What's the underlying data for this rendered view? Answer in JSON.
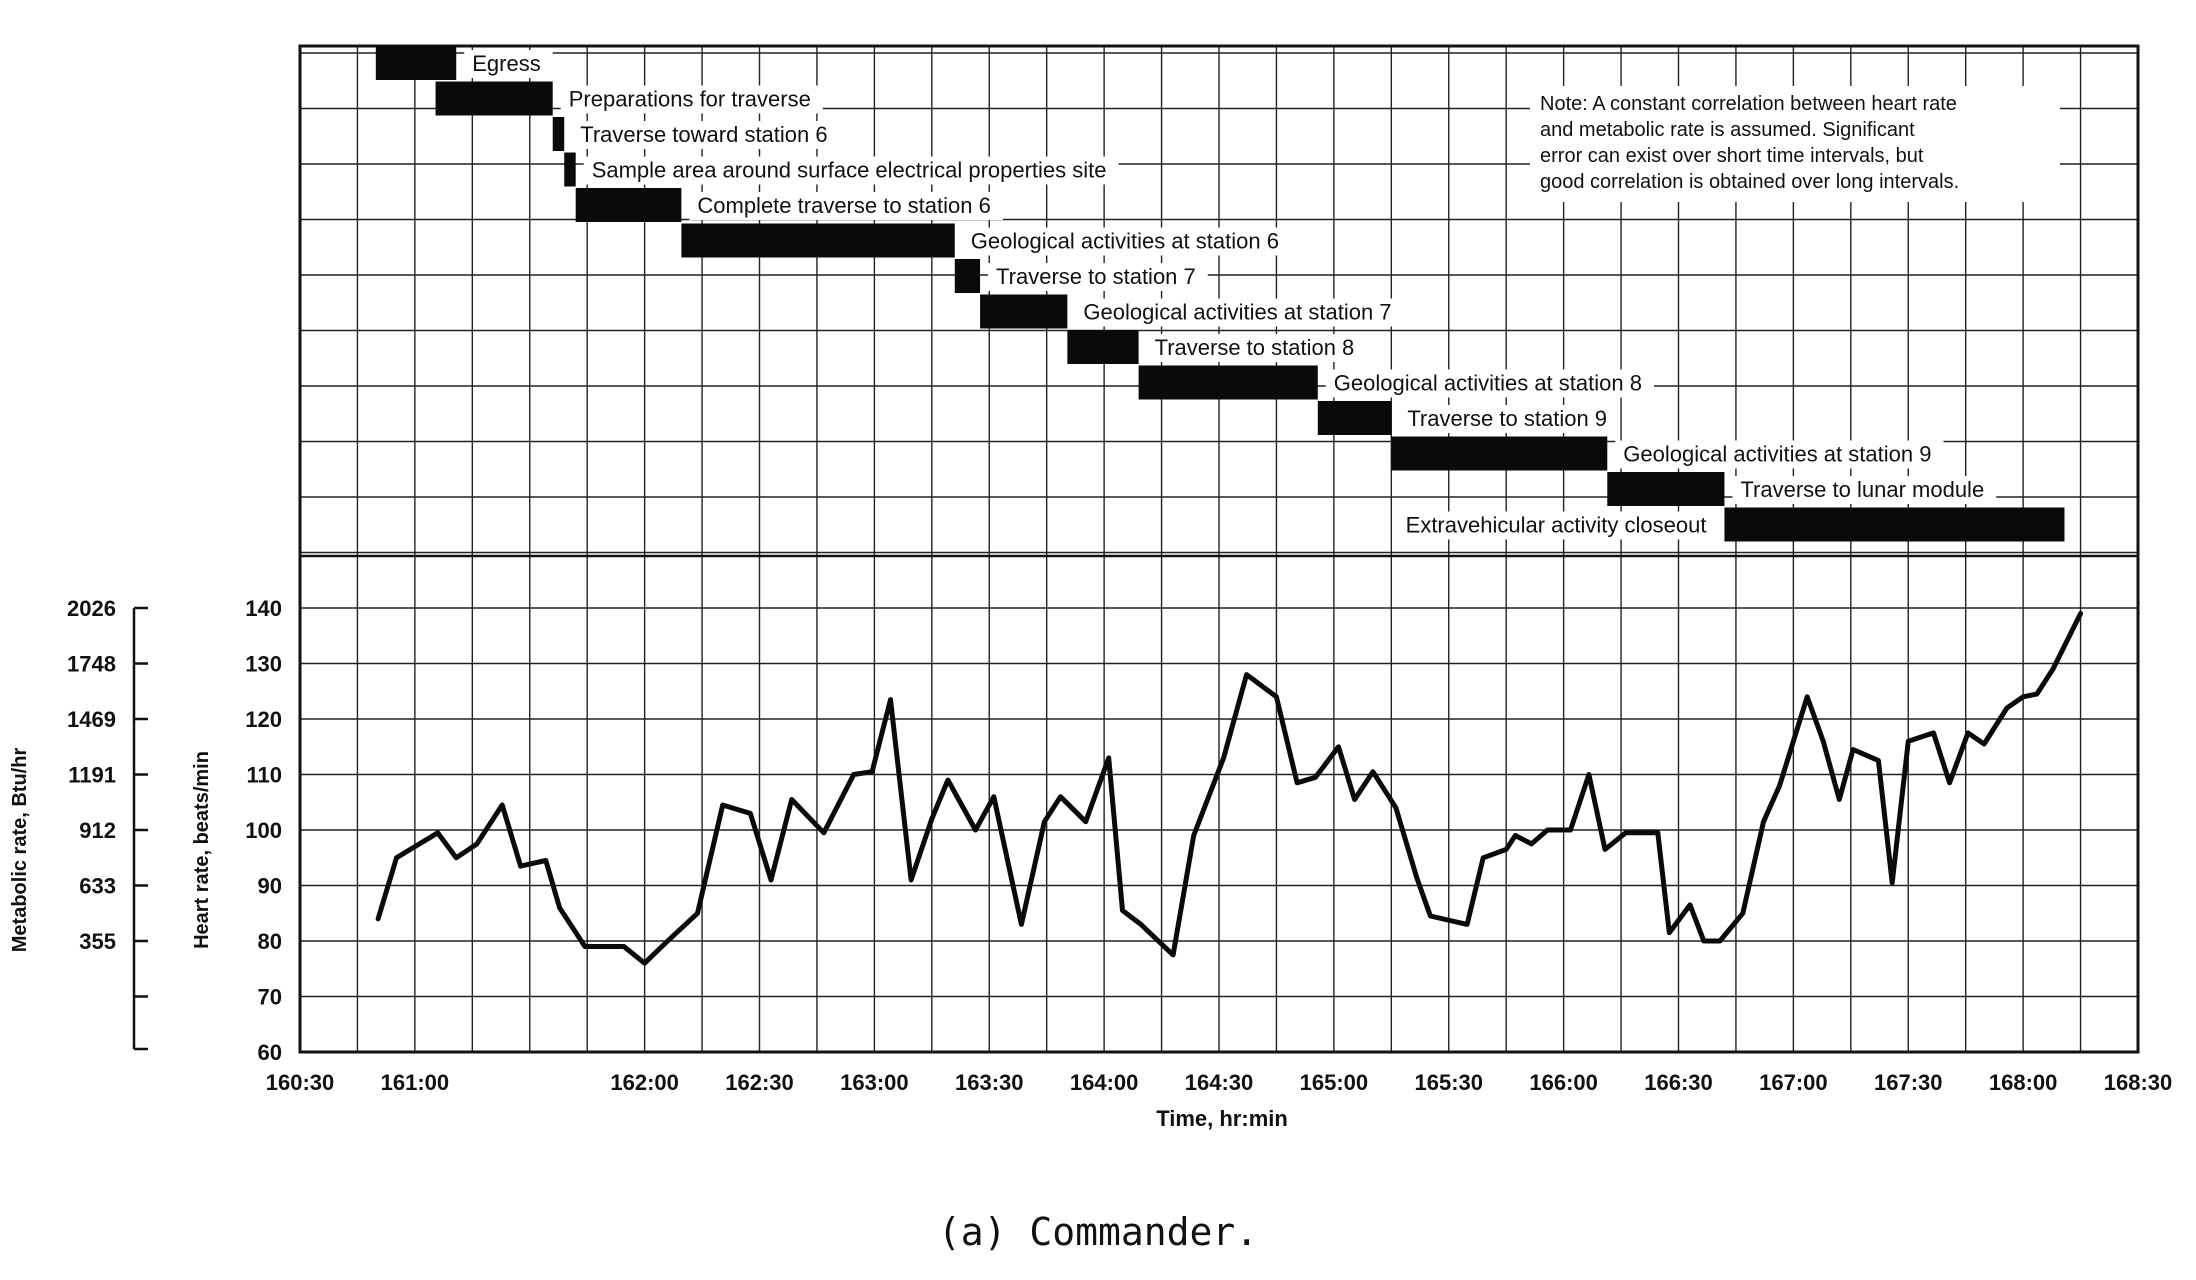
{
  "chart_data": {
    "type": "line",
    "title": "",
    "caption": "(a) Commander.",
    "xlabel": "Time, hr:min",
    "ylabel": "Heart rate, beats/min",
    "y2label": "Metabolic rate, Btu/hr",
    "xlim": [
      160.5,
      168.5
    ],
    "ylim": [
      60,
      140
    ],
    "x_ticks": [
      {
        "value": 160.5,
        "label": "160:30"
      },
      {
        "value": 161.0,
        "label": "161:00"
      },
      {
        "value": 162.0,
        "label": "162:00"
      },
      {
        "value": 162.5,
        "label": "162:30"
      },
      {
        "value": 163.0,
        "label": "163:00"
      },
      {
        "value": 163.5,
        "label": "163:30"
      },
      {
        "value": 164.0,
        "label": "164:00"
      },
      {
        "value": 164.5,
        "label": "164:30"
      },
      {
        "value": 165.0,
        "label": "165:00"
      },
      {
        "value": 165.5,
        "label": "165:30"
      },
      {
        "value": 166.0,
        "label": "166:00"
      },
      {
        "value": 166.5,
        "label": "166:30"
      },
      {
        "value": 167.0,
        "label": "167:00"
      },
      {
        "value": 167.5,
        "label": "167:30"
      },
      {
        "value": 168.0,
        "label": "168:00"
      },
      {
        "value": 168.5,
        "label": "168:30"
      }
    ],
    "y_ticks": [
      {
        "value": 60,
        "label": "60"
      },
      {
        "value": 70,
        "label": "70"
      },
      {
        "value": 80,
        "label": "80"
      },
      {
        "value": 90,
        "label": "90"
      },
      {
        "value": 100,
        "label": "100"
      },
      {
        "value": 110,
        "label": "110"
      },
      {
        "value": 120,
        "label": "120"
      },
      {
        "value": 130,
        "label": "130"
      },
      {
        "value": 140,
        "label": "140"
      }
    ],
    "metabolic_ticks": [
      {
        "heart_rate": 80,
        "label": "355"
      },
      {
        "heart_rate": 90,
        "label": "633"
      },
      {
        "heart_rate": 100,
        "label": "912"
      },
      {
        "heart_rate": 110,
        "label": "1191"
      },
      {
        "heart_rate": 120,
        "label": "1469"
      },
      {
        "heart_rate": 130,
        "label": "1748"
      },
      {
        "heart_rate": 140,
        "label": "2026"
      }
    ],
    "series": [
      {
        "name": "Heart rate",
        "points": [
          [
            160.84,
            84
          ],
          [
            160.92,
            95
          ],
          [
            161.0,
            97
          ],
          [
            161.1,
            99.5
          ],
          [
            161.18,
            95
          ],
          [
            161.27,
            97.5
          ],
          [
            161.38,
            104.5
          ],
          [
            161.46,
            93.5
          ],
          [
            161.57,
            94.5
          ],
          [
            161.63,
            86
          ],
          [
            161.74,
            79
          ],
          [
            161.91,
            79
          ],
          [
            162.0,
            76
          ],
          [
            162.1,
            80
          ],
          [
            162.23,
            85
          ],
          [
            162.34,
            104.5
          ],
          [
            162.46,
            103
          ],
          [
            162.55,
            91
          ],
          [
            162.64,
            105.5
          ],
          [
            162.78,
            99.5
          ],
          [
            162.91,
            110
          ],
          [
            162.99,
            110.5
          ],
          [
            163.07,
            123.5
          ],
          [
            163.16,
            91
          ],
          [
            163.25,
            102
          ],
          [
            163.32,
            109
          ],
          [
            163.44,
            100
          ],
          [
            163.52,
            106
          ],
          [
            163.64,
            83
          ],
          [
            163.74,
            101.5
          ],
          [
            163.81,
            106
          ],
          [
            163.92,
            101.5
          ],
          [
            164.02,
            113
          ],
          [
            164.08,
            85.5
          ],
          [
            164.16,
            83
          ],
          [
            164.3,
            77.5
          ],
          [
            164.39,
            99
          ],
          [
            164.52,
            113
          ],
          [
            164.62,
            128
          ],
          [
            164.75,
            124
          ],
          [
            164.84,
            108.5
          ],
          [
            164.92,
            109.5
          ],
          [
            165.02,
            115
          ],
          [
            165.09,
            105.5
          ],
          [
            165.17,
            110.5
          ],
          [
            165.27,
            104
          ],
          [
            165.36,
            91.5
          ],
          [
            165.42,
            84.5
          ],
          [
            165.58,
            83
          ],
          [
            165.65,
            95
          ],
          [
            165.75,
            96.5
          ],
          [
            165.79,
            99
          ],
          [
            165.86,
            97.5
          ],
          [
            165.93,
            100
          ],
          [
            166.03,
            100
          ],
          [
            166.11,
            110
          ],
          [
            166.18,
            96.5
          ],
          [
            166.27,
            99.5
          ],
          [
            166.41,
            99.5
          ],
          [
            166.46,
            81.5
          ],
          [
            166.55,
            86.5
          ],
          [
            166.61,
            80
          ],
          [
            166.68,
            80
          ],
          [
            166.78,
            85
          ],
          [
            166.87,
            101.5
          ],
          [
            166.94,
            108
          ],
          [
            167.06,
            124
          ],
          [
            167.13,
            116
          ],
          [
            167.2,
            105.5
          ],
          [
            167.26,
            114.5
          ],
          [
            167.37,
            112.5
          ],
          [
            167.43,
            90.5
          ],
          [
            167.5,
            116
          ],
          [
            167.61,
            117.5
          ],
          [
            167.68,
            108.5
          ],
          [
            167.76,
            117.5
          ],
          [
            167.83,
            115.5
          ],
          [
            167.93,
            122
          ],
          [
            168.0,
            124
          ],
          [
            168.06,
            124.5
          ],
          [
            168.13,
            129
          ],
          [
            168.25,
            139
          ]
        ]
      }
    ],
    "timeline": [
      {
        "label": "Egress",
        "start": 160.83,
        "end": 161.18
      },
      {
        "label": "Preparations for traverse",
        "start": 161.09,
        "end": 161.6
      },
      {
        "label": "Traverse toward station 6",
        "start": 161.6,
        "end": 161.65
      },
      {
        "label": "Sample area around surface electrical properties site",
        "start": 161.65,
        "end": 161.7
      },
      {
        "label": "Complete traverse to station 6",
        "start": 161.7,
        "end": 162.16
      },
      {
        "label": "Geological activities at station 6",
        "start": 162.16,
        "end": 163.35
      },
      {
        "label": "Traverse to station 7",
        "start": 163.35,
        "end": 163.46
      },
      {
        "label": "Geological activities at station 7",
        "start": 163.46,
        "end": 163.84
      },
      {
        "label": "Traverse to station 8",
        "start": 163.84,
        "end": 164.15
      },
      {
        "label": "Geological activities at station 8",
        "start": 164.15,
        "end": 164.93
      },
      {
        "label": "Traverse to station 9",
        "start": 164.93,
        "end": 165.25
      },
      {
        "label": "Geological activities at station 9",
        "start": 165.25,
        "end": 166.19
      },
      {
        "label": "Traverse to lunar module",
        "start": 166.19,
        "end": 166.7
      },
      {
        "label": "Extravehicular activity closeout",
        "start": 166.7,
        "end": 168.18
      }
    ],
    "note": [
      "Note:  A constant correlation between heart rate",
      "and metabolic rate is assumed.  Significant",
      "error can exist over short time intervals, but",
      "good correlation is obtained over long intervals."
    ],
    "grid": true,
    "legend": "none"
  }
}
